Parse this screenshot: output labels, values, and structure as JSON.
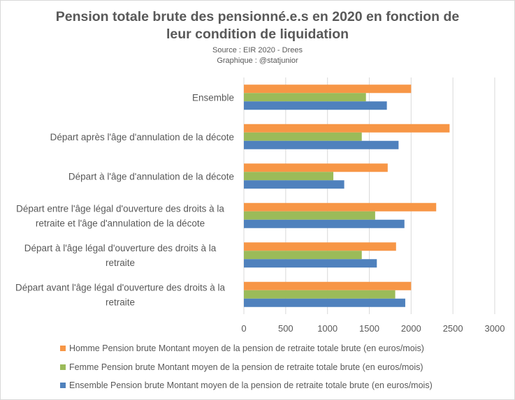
{
  "title_line1": "Pension totale brute des pensionné.e.s en 2020 en fonction de",
  "title_line2": "leur condition  de liquidation",
  "source": "Source : EIR 2020 - Drees",
  "credit": "Graphique : @statjunior",
  "colors": {
    "homme": "#f79646",
    "femme": "#9bbb59",
    "ensemble": "#4f81bd",
    "grid": "#d9d9d9",
    "text": "#595959"
  },
  "chart_data": {
    "type": "bar",
    "orientation": "horizontal",
    "categories": [
      [
        "Ensemble"
      ],
      [
        "Départ après l'âge d'annulation de la décote"
      ],
      [
        "Départ à l'âge d'annulation de la décote"
      ],
      [
        "Départ entre l'âge légal d'ouverture des droits à la",
        "retraite et l'âge d'annulation de la décote"
      ],
      [
        "Départ à l'âge légal d'ouverture des droits à la",
        "retraite"
      ],
      [
        "Départ avant l'âge légal d'ouverture des droits à la",
        "retraite"
      ]
    ],
    "series": [
      {
        "name": "Homme Pension brute Montant moyen de la pension de retraite totale brute (en euros/mois)",
        "color_key": "homme",
        "values": [
          2000,
          2460,
          1720,
          2300,
          1820,
          2000
        ]
      },
      {
        "name": "Femme Pension brute Montant moyen de la pension de retraite totale brute (en euros/mois)",
        "color_key": "femme",
        "values": [
          1460,
          1410,
          1070,
          1570,
          1410,
          1810
        ]
      },
      {
        "name": "Ensemble Pension brute Montant moyen de la pension de retraite totale brute (en euros/mois)",
        "color_key": "ensemble",
        "values": [
          1710,
          1850,
          1200,
          1920,
          1590,
          1930
        ]
      }
    ],
    "xlim": [
      0,
      3000
    ],
    "xticks": [
      0,
      500,
      1000,
      1500,
      2000,
      2500,
      3000
    ],
    "grid": true,
    "legend_position": "bottom"
  }
}
